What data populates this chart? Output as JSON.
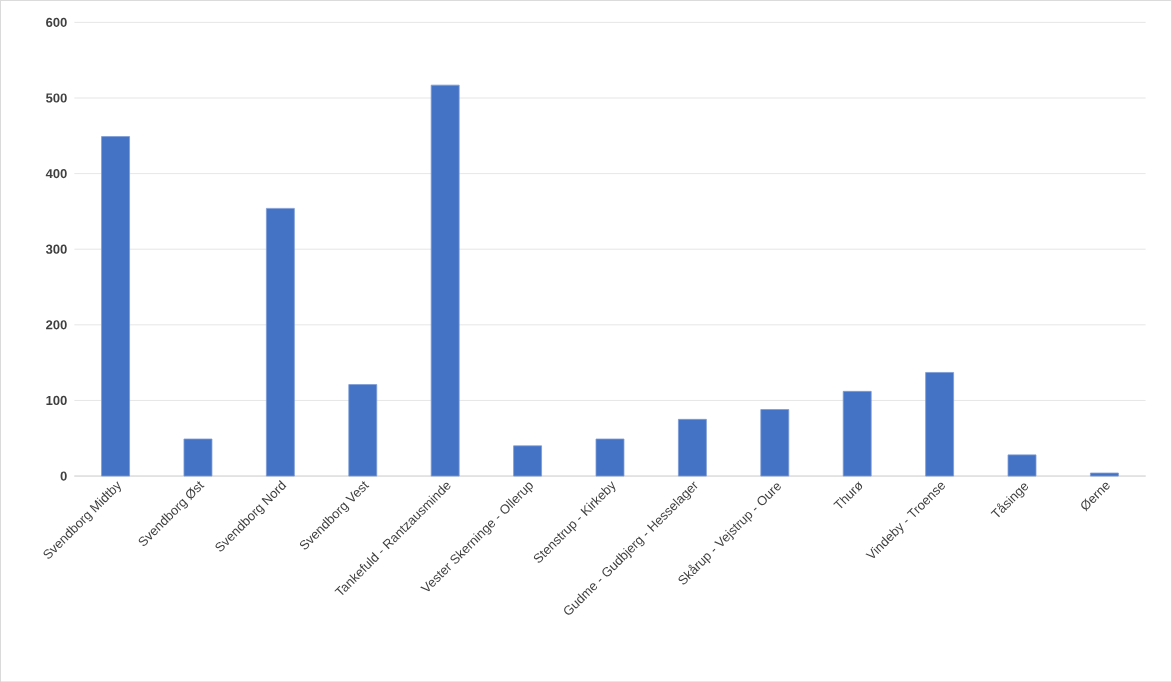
{
  "chart_data": {
    "type": "bar",
    "categories": [
      "Svendborg Midtby",
      "Svendborg  Øst",
      "Svendborg Nord",
      "Svendborg Vest",
      "Tankefuld - Rantzausminde",
      "Vester Skerninge - Ollerup",
      "Stenstrup - Kirkeby",
      "Gudme - Gudbjerg - Hesselager",
      "Skårup - Vejstrup - Oure",
      "Thurø",
      "Vindeby - Troense",
      "Tåsinge",
      "Øerne"
    ],
    "values": [
      449,
      49,
      354,
      121,
      517,
      40,
      49,
      75,
      88,
      112,
      137,
      28,
      4
    ],
    "color": "#4472c4",
    "ylim": [
      0,
      600
    ],
    "yticks": [
      0,
      100,
      200,
      300,
      400,
      500,
      600
    ],
    "grid": "y"
  }
}
